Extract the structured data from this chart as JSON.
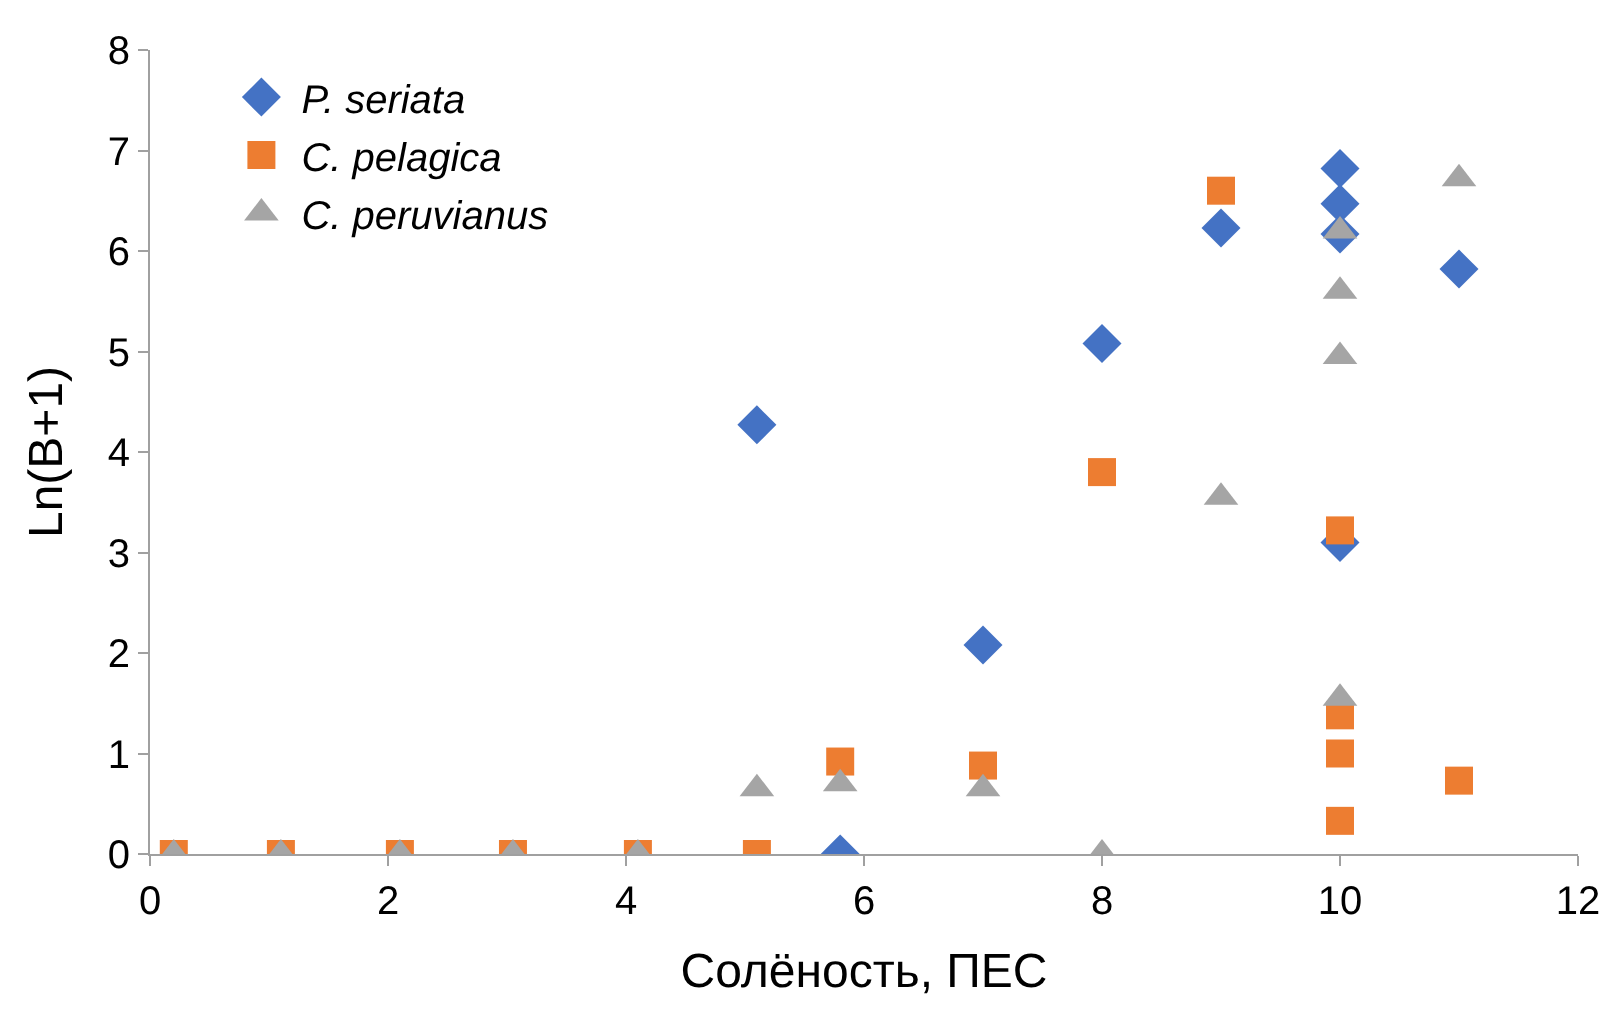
{
  "chart_data": {
    "type": "scatter",
    "xlabel": "Солёность, ПЕС",
    "ylabel": "Ln(B+1)",
    "xlim": [
      0,
      12
    ],
    "ylim": [
      0,
      8
    ],
    "xticks": [
      0,
      2,
      4,
      6,
      8,
      10,
      12
    ],
    "yticks": [
      0,
      1,
      2,
      3,
      4,
      5,
      6,
      7,
      8
    ],
    "legend": "top left",
    "series": [
      {
        "name": "P. seriata",
        "color": "#4472c4",
        "marker": "diamond",
        "x": [
          5.1,
          5.8,
          7,
          8,
          9,
          10,
          10,
          10,
          10,
          11
        ],
        "values": [
          4.27,
          0,
          2.08,
          5.08,
          6.23,
          6.82,
          6.47,
          6.17,
          3.1,
          5.82
        ]
      },
      {
        "name": "C. pelagica",
        "color": "#ed7d31",
        "marker": "square",
        "x": [
          0.2,
          1.1,
          2.1,
          3.05,
          4.1,
          5.1,
          5.8,
          7,
          8,
          9,
          10,
          10,
          10,
          10,
          11
        ],
        "values": [
          0,
          0,
          0,
          0,
          0,
          0,
          0.92,
          0.88,
          3.8,
          6.6,
          3.22,
          1.38,
          1.0,
          0.33,
          0.73
        ]
      },
      {
        "name": "C. peruvianus",
        "color": "#a5a5a5",
        "marker": "triangle",
        "x": [
          0.2,
          1.1,
          2.1,
          3.05,
          4.1,
          5.1,
          5.8,
          7,
          8,
          9,
          10,
          10,
          10,
          10,
          11
        ],
        "values": [
          0,
          0,
          0,
          0,
          0,
          0.65,
          0.7,
          0.65,
          0,
          3.55,
          6.2,
          5.6,
          4.95,
          1.55,
          6.72
        ]
      }
    ]
  }
}
